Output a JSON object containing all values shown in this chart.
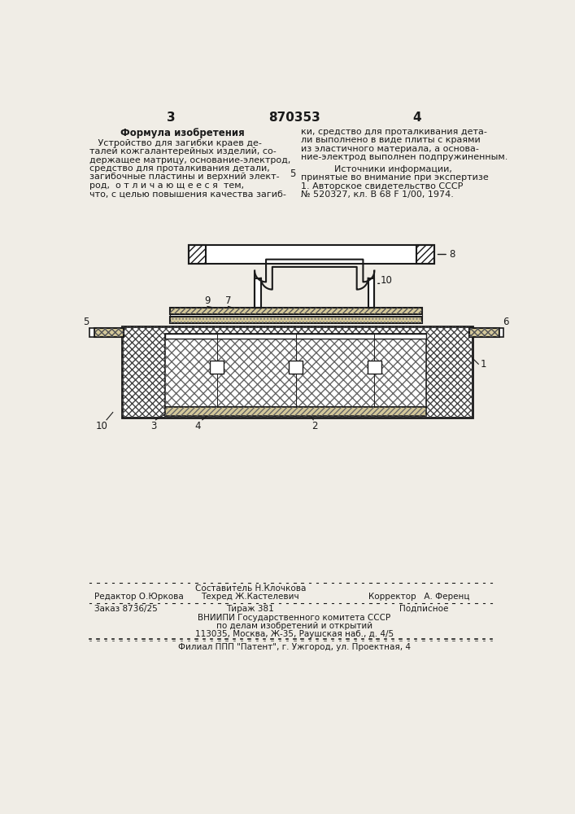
{
  "page_number_left": "3",
  "patent_number": "870353",
  "page_number_right": "4",
  "left_heading": "Формула изобретения",
  "left_text": [
    "   Устройство для загибки краев де-",
    "талей кожгалантерейных изделий, со-",
    "держащее матрицу, основание-электрод,",
    "средство для проталкивания детали,",
    "загибочные пластины и верхний элект-",
    "род,  о т л и ч а ю щ е е с я  тем,",
    "что, с целью повышения качества загиб-"
  ],
  "line_number": "5",
  "right_text_top": [
    "ки, средство для проталкивания дета-",
    "ли выполнено в виде плиты с краями",
    "из эластичного материала, а основа-",
    "ние-электрод выполнен подпружиненным."
  ],
  "right_heading": "Источники информации,",
  "right_text_bottom": [
    "принятые во внимание при экспертизе",
    "1. Авторское свидетельство СССР",
    "№ 520327, кл. В 68 F 1/00, 1974."
  ],
  "footer_line1_col1": "Редактор О.Юркова",
  "footer_line1_col2": "Составитель Н.Клочкова",
  "footer_line1_col3": "Техред Ж.Кастелевич",
  "footer_line1_col4": "Корректор   А. Ференц",
  "footer_line2_col1": "Заказ 8736/25",
  "footer_line2_col2": "Тираж 381",
  "footer_line2_col3": "Подписное",
  "footer_line3": "ВНИИПИ Государственного комитета СССР",
  "footer_line4": "по делам изобретений и открытий",
  "footer_line5": "113035, Москва, Ж-35, Раушская наб., д. 4/5",
  "footer_line6": "Филиал ППП \"Патент\", г. Ужгород, ул. Проектная, 4",
  "bg_color": "#f0ede6",
  "text_color": "#1a1a1a"
}
